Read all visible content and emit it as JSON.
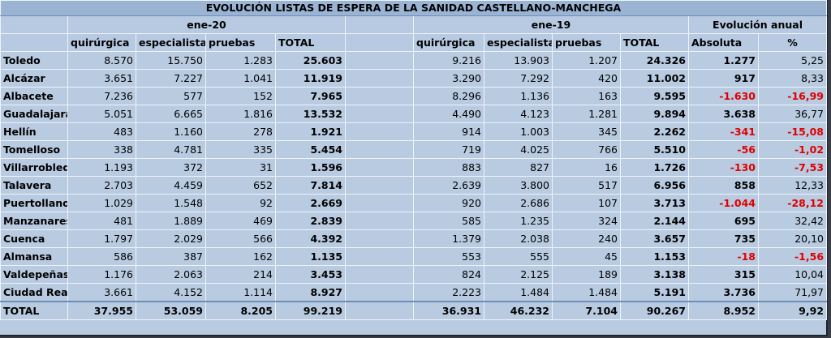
{
  "title": "EVOLUCIÓN LISTAS DE ESPERA DE LA SANIDAD CASTELLANO-MANCHEGA",
  "groups": {
    "g1": "ene-20",
    "g2": "ene-19",
    "g3": "Evolución anual"
  },
  "columns": {
    "quirurgica": "quirúrgica",
    "especialista": "especialista",
    "pruebas": "pruebas",
    "total": "TOTAL",
    "absoluta": "Absoluta",
    "pct": "%"
  },
  "rows": [
    {
      "name": "Toledo",
      "q20": "8.570",
      "e20": "15.750",
      "p20": "1.283",
      "t20": "25.603",
      "q19": "9.216",
      "e19": "13.903",
      "p19": "1.207",
      "t19": "24.326",
      "abs": "1.277",
      "pct": "5,25"
    },
    {
      "name": "Alcázar",
      "q20": "3.651",
      "e20": "7.227",
      "p20": "1.041",
      "t20": "11.919",
      "q19": "3.290",
      "e19": "7.292",
      "p19": "420",
      "t19": "11.002",
      "abs": "917",
      "pct": "8,33"
    },
    {
      "name": "Albacete",
      "q20": "7.236",
      "e20": "577",
      "p20": "152",
      "t20": "7.965",
      "q19": "8.296",
      "e19": "1.136",
      "p19": "163",
      "t19": "9.595",
      "abs": "-1.630",
      "pct": "-16,99"
    },
    {
      "name": "Guadalajara",
      "q20": "5.051",
      "e20": "6.665",
      "p20": "1.816",
      "t20": "13.532",
      "q19": "4.490",
      "e19": "4.123",
      "p19": "1.281",
      "t19": "9.894",
      "abs": "3.638",
      "pct": "36,77"
    },
    {
      "name": "Hellín",
      "q20": "483",
      "e20": "1.160",
      "p20": "278",
      "t20": "1.921",
      "q19": "914",
      "e19": "1.003",
      "p19": "345",
      "t19": "2.262",
      "abs": "-341",
      "pct": "-15,08"
    },
    {
      "name": "Tomelloso",
      "q20": "338",
      "e20": "4.781",
      "p20": "335",
      "t20": "5.454",
      "q19": "719",
      "e19": "4.025",
      "p19": "766",
      "t19": "5.510",
      "abs": "-56",
      "pct": "-1,02"
    },
    {
      "name": "Villarrobledo",
      "q20": "1.193",
      "e20": "372",
      "p20": "31",
      "t20": "1.596",
      "q19": "883",
      "e19": "827",
      "p19": "16",
      "t19": "1.726",
      "abs": "-130",
      "pct": "-7,53"
    },
    {
      "name": "Talavera",
      "q20": "2.703",
      "e20": "4.459",
      "p20": "652",
      "t20": "7.814",
      "q19": "2.639",
      "e19": "3.800",
      "p19": "517",
      "t19": "6.956",
      "abs": "858",
      "pct": "12,33"
    },
    {
      "name": "Puertollano",
      "q20": "1.029",
      "e20": "1.548",
      "p20": "92",
      "t20": "2.669",
      "q19": "920",
      "e19": "2.686",
      "p19": "107",
      "t19": "3.713",
      "abs": "-1.044",
      "pct": "-28,12"
    },
    {
      "name": "Manzanares",
      "q20": "481",
      "e20": "1.889",
      "p20": "469",
      "t20": "2.839",
      "q19": "585",
      "e19": "1.235",
      "p19": "324",
      "t19": "2.144",
      "abs": "695",
      "pct": "32,42"
    },
    {
      "name": "Cuenca",
      "q20": "1.797",
      "e20": "2.029",
      "p20": "566",
      "t20": "4.392",
      "q19": "1.379",
      "e19": "2.038",
      "p19": "240",
      "t19": "3.657",
      "abs": "735",
      "pct": "20,10"
    },
    {
      "name": "Almansa",
      "q20": "586",
      "e20": "387",
      "p20": "162",
      "t20": "1.135",
      "q19": "553",
      "e19": "555",
      "p19": "45",
      "t19": "1.153",
      "abs": "-18",
      "pct": "-1,56"
    },
    {
      "name": "Valdepeñas",
      "q20": "1.176",
      "e20": "2.063",
      "p20": "214",
      "t20": "3.453",
      "q19": "824",
      "e19": "2.125",
      "p19": "189",
      "t19": "3.138",
      "abs": "315",
      "pct": "10,04"
    },
    {
      "name": "Ciudad Real",
      "q20": "3.661",
      "e20": "4.152",
      "p20": "1.114",
      "t20": "8.927",
      "q19": "2.223",
      "e19": "1.484",
      "p19": "1.484",
      "t19": "5.191",
      "abs": "3.736",
      "pct": "71,97"
    }
  ],
  "total": {
    "name": "TOTAL",
    "q20": "37.955",
    "e20": "53.059",
    "p20": "8.205",
    "t20": "99.219",
    "q19": "36.931",
    "e19": "46.232",
    "p19": "7.104",
    "t19": "90.267",
    "abs": "8.952",
    "pct": "9,92"
  },
  "colors": {
    "negative": "#e00000",
    "cell_bg": "#b9cbe1",
    "title_bg": "#9bb4d4"
  }
}
